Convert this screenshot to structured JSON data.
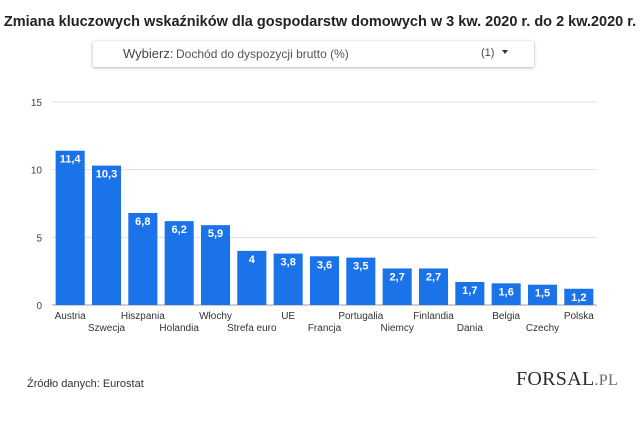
{
  "title": "Zmiana kluczowych wskaźników dla gospodarstw domowych w 3 kw. 2020 r. do 2 kw.2020 r.",
  "selector": {
    "label": "Wybierz:",
    "value": "Dochód do dyspozycji brutto (%)",
    "count": "(1)"
  },
  "chart_data": {
    "type": "bar",
    "categories": [
      "Austria",
      "Szwecja",
      "Hiszpania",
      "Holandia",
      "Włochy",
      "Strefa euro",
      "UE",
      "Francja",
      "Portugalia",
      "Niemcy",
      "Finlandia",
      "Dania",
      "Belgia",
      "Czechy",
      "Polska"
    ],
    "values": [
      11.4,
      10.3,
      6.8,
      6.2,
      5.9,
      4,
      3.8,
      3.6,
      3.5,
      2.7,
      2.7,
      1.7,
      1.6,
      1.5,
      1.2
    ],
    "value_labels": [
      "11,4",
      "10,3",
      "6,8",
      "6,2",
      "5,9",
      "4",
      "3,8",
      "3,6",
      "3,5",
      "2,7",
      "2,7",
      "1,7",
      "1,6",
      "1,5",
      "1,2"
    ],
    "yticks": [
      "0",
      "5",
      "10",
      "15"
    ],
    "ylim": [
      0,
      15
    ],
    "grid": true,
    "bar_color": "#1a73e8"
  },
  "source": "Źródło danych: Eurostat",
  "logo": {
    "main": "FORSAL",
    "suffix": ".PL"
  }
}
